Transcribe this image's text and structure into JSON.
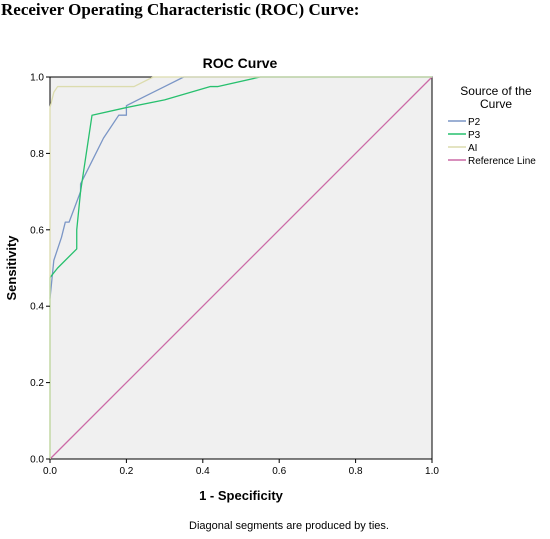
{
  "heading": "Receiver Operating Characteristic (ROC) Curve:",
  "footnote": "Diagonal segments are produced by ties.",
  "legend": {
    "title_lines": [
      "Source of the",
      "Curve"
    ]
  },
  "chart_data": {
    "type": "line",
    "title": "ROC Curve",
    "xlabel": "1 - Specificity",
    "ylabel": "Sensitivity",
    "xlim": [
      0,
      1
    ],
    "ylim": [
      0,
      1
    ],
    "x_ticks": [
      "0.0",
      "0.2",
      "0.4",
      "0.6",
      "0.8",
      "1.0"
    ],
    "y_ticks": [
      "0.0",
      "0.2",
      "0.4",
      "0.6",
      "0.8",
      "1.0"
    ],
    "grid": false,
    "legend_position": "right",
    "plot_background": "#f0f0f0",
    "series": [
      {
        "name": "P2",
        "color": "#7b96c6",
        "points": [
          [
            0,
            0.42
          ],
          [
            0.01,
            0.52
          ],
          [
            0.03,
            0.58
          ],
          [
            0.04,
            0.62
          ],
          [
            0.05,
            0.62
          ],
          [
            0.08,
            0.7
          ],
          [
            0.08,
            0.72
          ],
          [
            0.11,
            0.78
          ],
          [
            0.14,
            0.84
          ],
          [
            0.18,
            0.9
          ],
          [
            0.2,
            0.9
          ],
          [
            0.2,
            0.925
          ],
          [
            0.25,
            0.95
          ],
          [
            0.3,
            0.975
          ],
          [
            0.35,
            1.0
          ],
          [
            1.0,
            1.0
          ]
        ]
      },
      {
        "name": "P3",
        "color": "#27c06e",
        "points": [
          [
            0,
            0.0
          ],
          [
            0,
            0.475
          ],
          [
            0.02,
            0.5
          ],
          [
            0.07,
            0.55
          ],
          [
            0.07,
            0.6
          ],
          [
            0.08,
            0.7
          ],
          [
            0.11,
            0.9
          ],
          [
            0.2,
            0.92
          ],
          [
            0.3,
            0.94
          ],
          [
            0.42,
            0.975
          ],
          [
            0.44,
            0.975
          ],
          [
            0.55,
            1.0
          ],
          [
            1.0,
            1.0
          ]
        ]
      },
      {
        "name": "AI",
        "color": "#dcdcae",
        "points": [
          [
            0,
            0.0
          ],
          [
            0,
            0.92
          ],
          [
            0.01,
            0.96
          ],
          [
            0.02,
            0.975
          ],
          [
            0.04,
            0.975
          ],
          [
            0.22,
            0.975
          ],
          [
            0.27,
            1.0
          ],
          [
            1.0,
            1.0
          ]
        ]
      },
      {
        "name": "Reference Line",
        "color": "#cc6aa6",
        "points": [
          [
            0,
            0
          ],
          [
            1,
            1
          ]
        ]
      }
    ]
  }
}
